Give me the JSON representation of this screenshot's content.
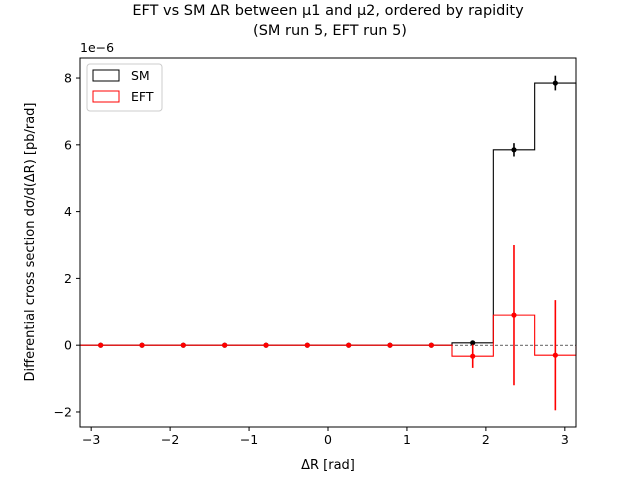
{
  "chart_data": {
    "type": "step",
    "title_line1": "EFT vs SM ΔR between μ1 and μ2, ordered by rapidity",
    "title_line2": "(SM run 5, EFT run 5)",
    "xlabel": "ΔR [rad]",
    "ylabel": "Differential cross section dσ/d(ΔR) [pb/rad]",
    "y_offset_label": "1e−6",
    "xlim": [
      -3.1416,
      3.1416
    ],
    "ylim": [
      -2.45,
      8.6
    ],
    "x_ticks": [
      -3,
      -2,
      -1,
      0,
      1,
      2,
      3
    ],
    "x_tick_labels": [
      "−3",
      "−2",
      "−1",
      "0",
      "1",
      "2",
      "3"
    ],
    "y_ticks": [
      -2,
      0,
      2,
      4,
      6,
      8
    ],
    "y_tick_labels": [
      "−2",
      "0",
      "2",
      "4",
      "6",
      "8"
    ],
    "bin_edges": [
      -3.1416,
      -2.618,
      -2.0944,
      -1.5708,
      -1.0472,
      -0.5236,
      0,
      0.5236,
      1.0472,
      1.5708,
      2.0944,
      2.618,
      3.1416
    ],
    "bin_centers": [
      -2.88,
      -2.356,
      -1.833,
      -1.309,
      -0.785,
      -0.262,
      0.262,
      0.785,
      1.309,
      1.833,
      2.356,
      2.88
    ],
    "series": [
      {
        "name": "SM",
        "color": "#000000",
        "values": [
          0,
          0,
          0,
          0,
          0,
          0,
          0,
          0,
          0,
          0.07,
          5.85,
          7.85
        ],
        "errors": [
          0,
          0,
          0,
          0,
          0,
          0,
          0,
          0,
          0,
          0.02,
          0.2,
          0.22
        ]
      },
      {
        "name": "EFT",
        "color": "#ff0000",
        "values": [
          0,
          0,
          0,
          0,
          0,
          0,
          0,
          0,
          0,
          -0.33,
          0.9,
          -0.3
        ],
        "errors": [
          0,
          0,
          0,
          0,
          0,
          0,
          0,
          0,
          0,
          0.35,
          2.1,
          1.65
        ]
      }
    ],
    "legend_position": "upper-left",
    "zero_line": true,
    "grid": false
  }
}
